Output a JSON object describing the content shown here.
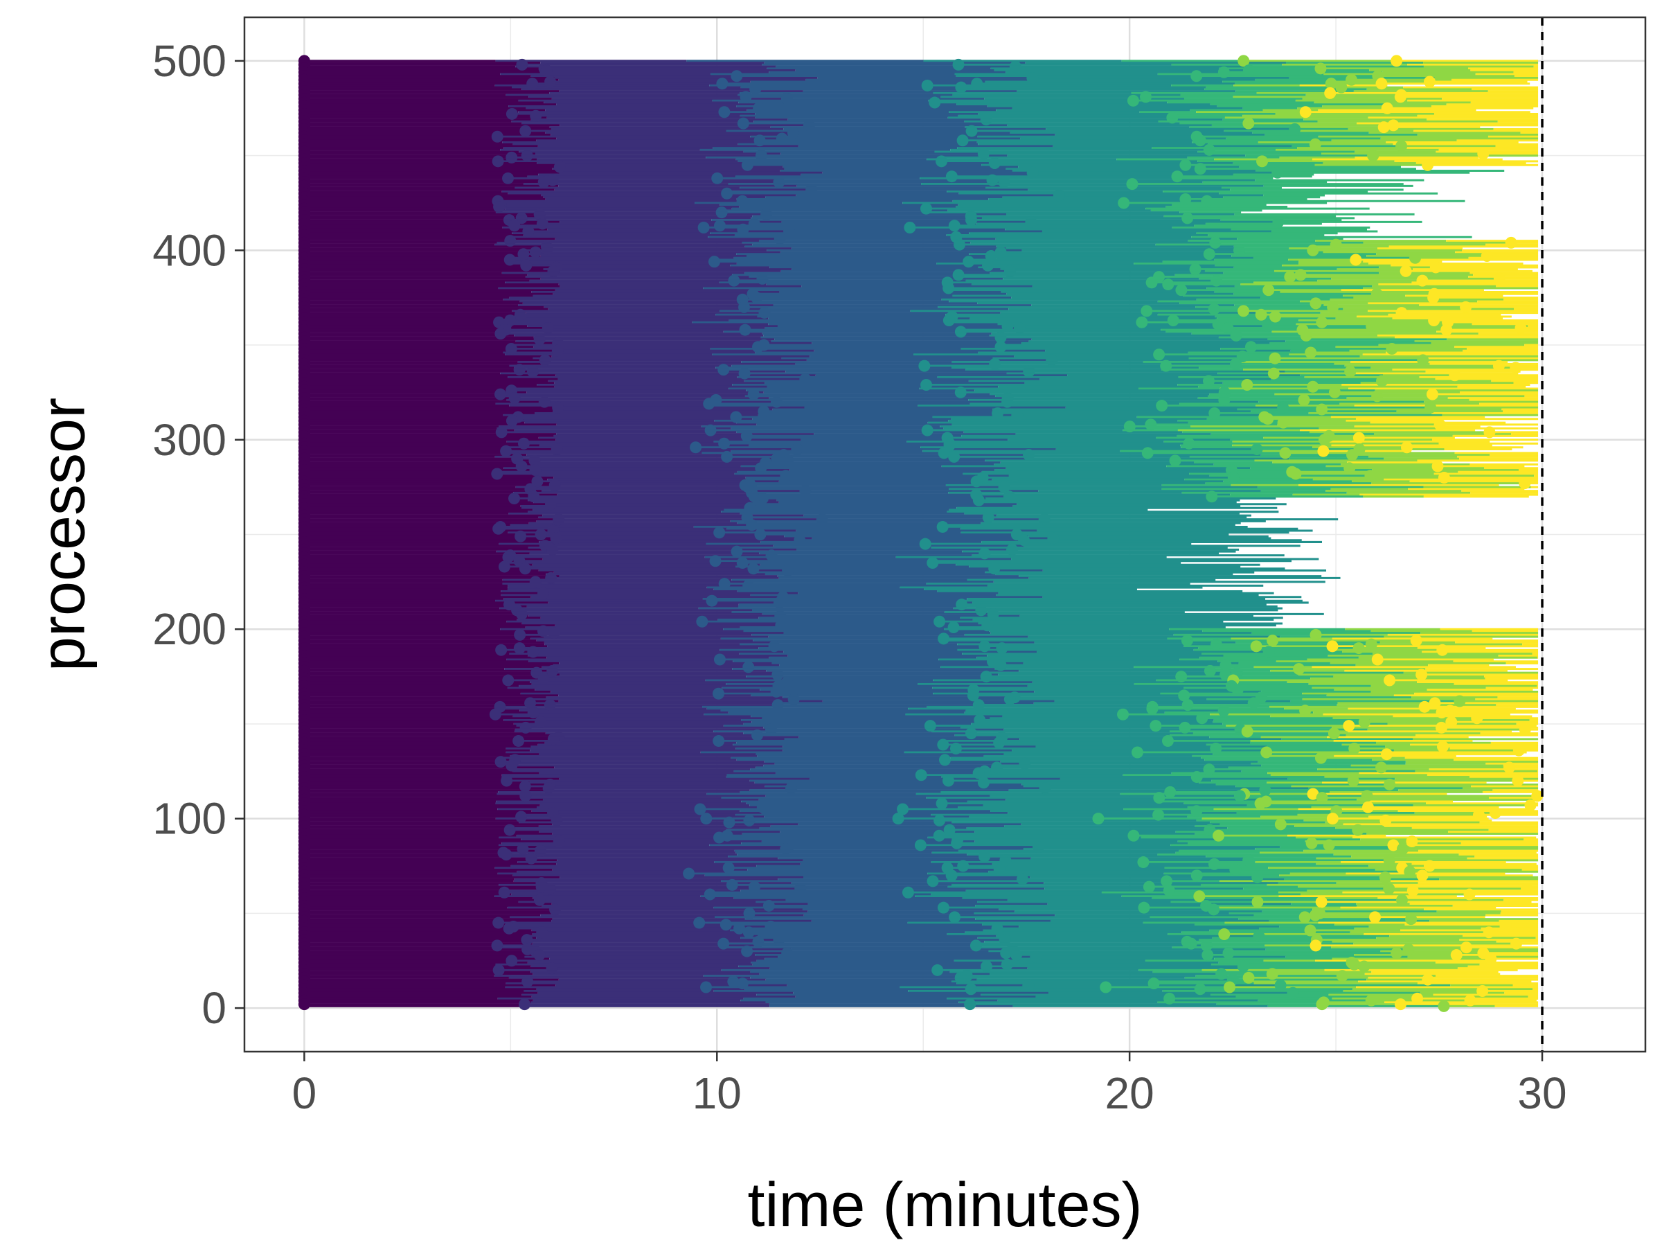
{
  "chart_data": {
    "type": "scatter",
    "subtype": "gantt-style processor timeline (horizontal segments with start markers)",
    "title": "",
    "xlabel": "time (minutes)",
    "ylabel": "processor",
    "xlim": [
      -1.45,
      32.5
    ],
    "ylim": [
      -23,
      523
    ],
    "x_ticks": [
      0,
      10,
      20,
      30
    ],
    "x_tick_labels": [
      "0",
      "10",
      "20",
      "30"
    ],
    "y_ticks": [
      0,
      100,
      200,
      300,
      400,
      500
    ],
    "y_tick_labels": [
      "0",
      "100",
      "200",
      "300",
      "400",
      "500"
    ],
    "grid": true,
    "legend": "none",
    "reference_line": {
      "x": 30,
      "style": "dashed",
      "color": "#000000"
    },
    "processors": {
      "min": 1,
      "max": 500
    },
    "color_scale": [
      "#440154",
      "#3b528b",
      "#21908c",
      "#5dc863",
      "#fde725"
    ],
    "job_waves": [
      {
        "wave": 1,
        "start_minutes": 0.0,
        "color": "#440154"
      },
      {
        "wave": 2,
        "start_minutes": 5.1,
        "color": "#3b2f78"
      },
      {
        "wave": 3,
        "start_minutes": 10.7,
        "color": "#2c5a8a"
      },
      {
        "wave": 4,
        "start_minutes": 16.3,
        "color": "#21908c"
      },
      {
        "wave": 5,
        "start_minutes": 21.8,
        "color": "#35b779"
      },
      {
        "wave": 6,
        "start_minutes": 23.8,
        "color": "#8fd744"
      },
      {
        "wave": 7,
        "start_minutes": 25.0,
        "color": "#fde725"
      }
    ]
  }
}
